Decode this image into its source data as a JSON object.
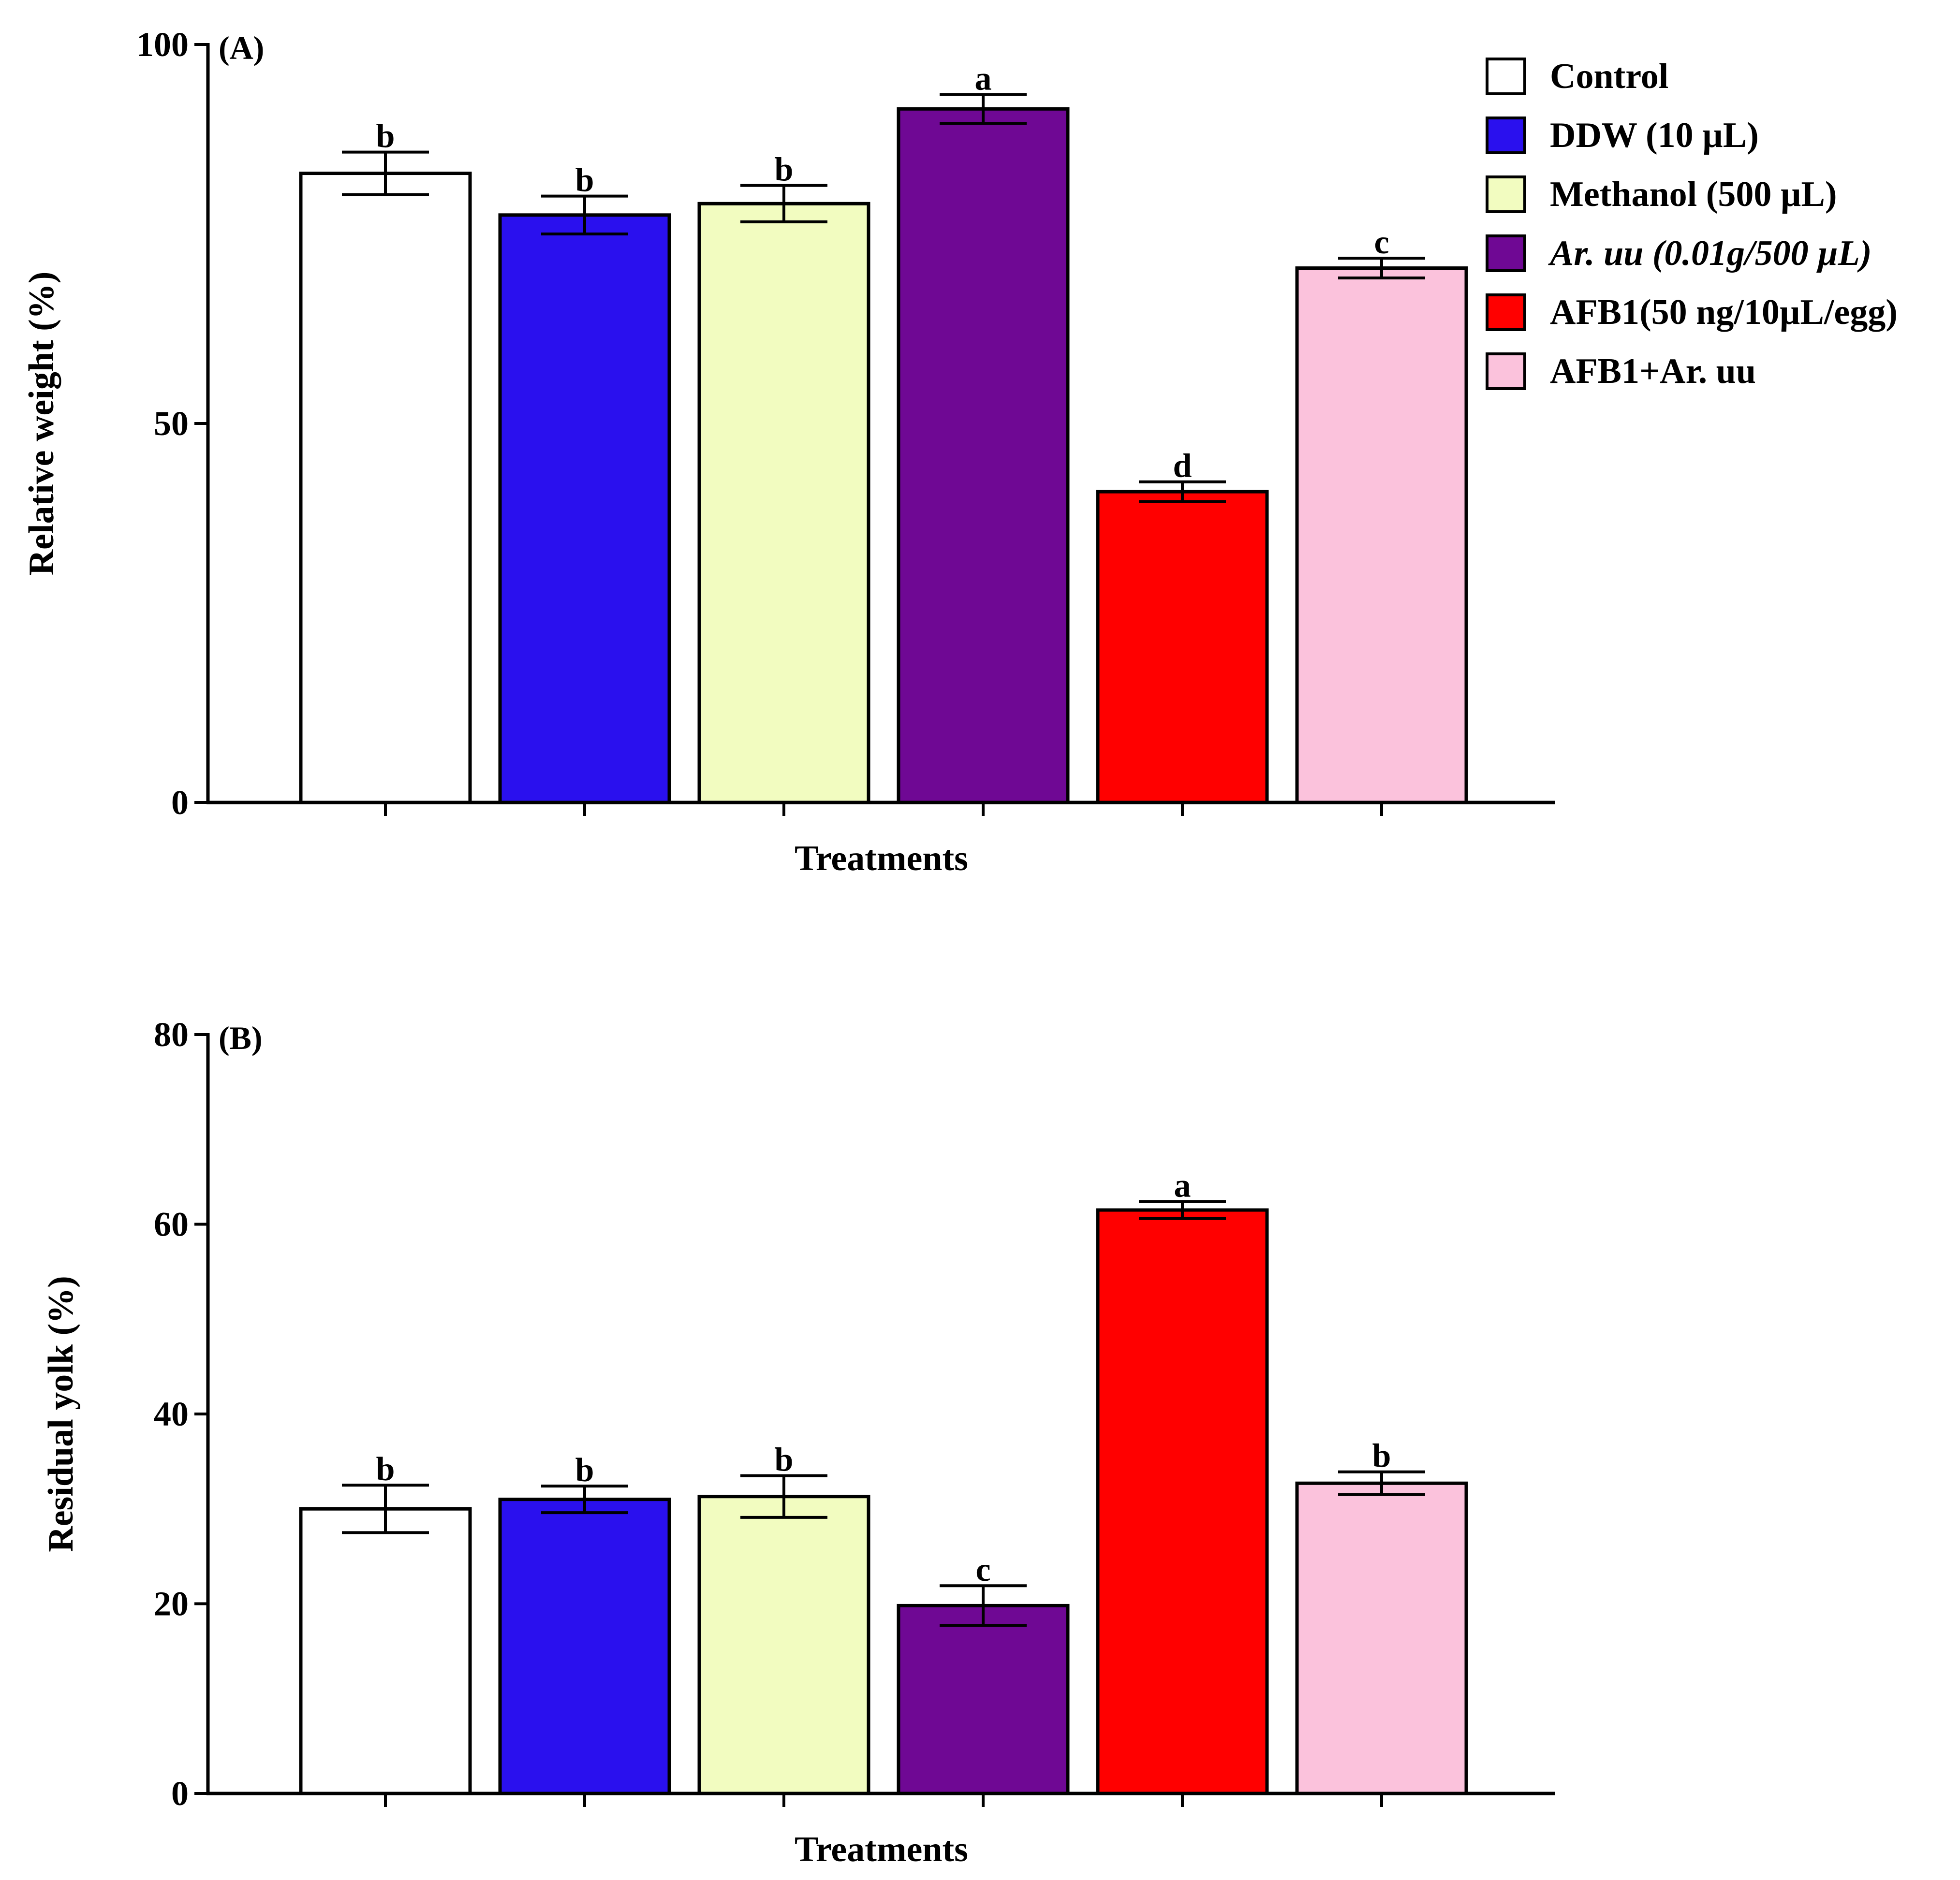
{
  "legend": [
    {
      "label": "Control",
      "color": "#ffffff",
      "italic": false
    },
    {
      "label": "DDW (10 µL)",
      "color": "#2a10ee",
      "italic": false
    },
    {
      "label": "Methanol (500 µL)",
      "color": "#f2fcc0",
      "italic": false
    },
    {
      "label": "Ar. uu (0.01g/500 µL)",
      "color": "#6f0894",
      "italic": true
    },
    {
      "label": "AFB1(50 ng/10µL/egg)",
      "color": "#ff0000",
      "italic": false
    },
    {
      "label": "AFB1+Ar. uu",
      "color": "#fbc2dc",
      "italic": false
    }
  ],
  "chart_data": [
    {
      "type": "bar",
      "panel_label": "(A)",
      "title": "",
      "xlabel": "Treatments",
      "ylabel": "Relative weight (%)",
      "ylim": [
        0,
        100
      ],
      "yticks": [
        0,
        50,
        100
      ],
      "categories": [
        "Control",
        "DDW (10 µL)",
        "Methanol (500 µL)",
        "Ar. uu (0.01g/500 µL)",
        "AFB1(50 ng/10µL/egg)",
        "AFB1+Ar. uu"
      ],
      "values": [
        83,
        77.5,
        79,
        91.5,
        41,
        70.5
      ],
      "errors": [
        2.8,
        2.5,
        2.4,
        1.9,
        1.3,
        1.3
      ],
      "letters": [
        "b",
        "b",
        "b",
        "a",
        "d",
        "c"
      ],
      "colors": [
        "#ffffff",
        "#2a10ee",
        "#f2fcc0",
        "#6f0894",
        "#ff0000",
        "#fbc2dc"
      ]
    },
    {
      "type": "bar",
      "panel_label": "(B)",
      "title": "",
      "xlabel": "Treatments",
      "ylabel": "Residual yolk (%)",
      "ylim": [
        0,
        80
      ],
      "yticks": [
        0,
        20,
        40,
        60,
        80
      ],
      "categories": [
        "Control",
        "DDW (10 µL)",
        "Methanol (500 µL)",
        "Ar. uu (0.01g/500 µL)",
        "AFB1(50 ng/10µL/egg)",
        "AFB1+Ar. uu"
      ],
      "values": [
        30,
        31,
        31.3,
        19.8,
        61.5,
        32.7
      ],
      "errors": [
        2.5,
        1.4,
        2.2,
        2.1,
        0.9,
        1.2
      ],
      "letters": [
        "b",
        "b",
        "b",
        "c",
        "a",
        "b"
      ],
      "colors": [
        "#ffffff",
        "#2a10ee",
        "#f2fcc0",
        "#6f0894",
        "#ff0000",
        "#fbc2dc"
      ]
    }
  ]
}
